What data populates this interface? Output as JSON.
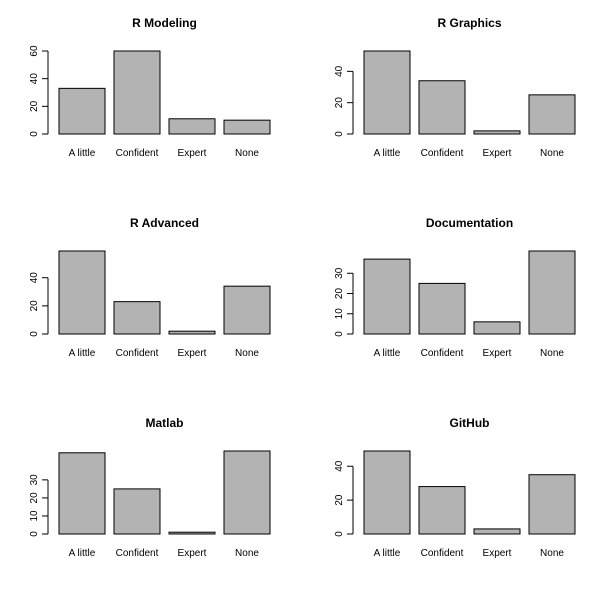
{
  "chart_data": [
    {
      "type": "bar",
      "title": "R Modeling",
      "categories": [
        "A little",
        "Confident",
        "Expert",
        "None"
      ],
      "values": [
        33,
        60,
        11,
        10
      ],
      "ylim": [
        0,
        60
      ],
      "yticks": [
        0,
        20,
        40,
        60
      ],
      "bar_color": "#b3b3b3",
      "xlabel": "",
      "ylabel": ""
    },
    {
      "type": "bar",
      "title": "R Graphics",
      "categories": [
        "A little",
        "Confident",
        "Expert",
        "None"
      ],
      "values": [
        53,
        34,
        2,
        25
      ],
      "ylim": [
        0,
        53
      ],
      "yticks": [
        0,
        20,
        40
      ],
      "bar_color": "#b3b3b3",
      "xlabel": "",
      "ylabel": ""
    },
    {
      "type": "bar",
      "title": "R Advanced",
      "categories": [
        "A little",
        "Confident",
        "Expert",
        "None"
      ],
      "values": [
        59,
        23,
        2,
        34
      ],
      "ylim": [
        0,
        59
      ],
      "yticks": [
        0,
        20,
        40
      ],
      "bar_color": "#b3b3b3",
      "xlabel": "",
      "ylabel": ""
    },
    {
      "type": "bar",
      "title": "Documentation",
      "categories": [
        "A little",
        "Confident",
        "Expert",
        "None"
      ],
      "values": [
        37,
        25,
        6,
        41
      ],
      "ylim": [
        0,
        41
      ],
      "yticks": [
        0,
        10,
        20,
        30
      ],
      "bar_color": "#b3b3b3",
      "xlabel": "",
      "ylabel": ""
    },
    {
      "type": "bar",
      "title": "Matlab",
      "categories": [
        "A little",
        "Confident",
        "Expert",
        "None"
      ],
      "values": [
        45,
        25,
        1,
        46
      ],
      "ylim": [
        0,
        46
      ],
      "yticks": [
        0,
        10,
        20,
        30
      ],
      "bar_color": "#b3b3b3",
      "xlabel": "",
      "ylabel": ""
    },
    {
      "type": "bar",
      "title": "GitHub",
      "categories": [
        "A little",
        "Confident",
        "Expert",
        "None"
      ],
      "values": [
        49,
        28,
        3,
        35
      ],
      "ylim": [
        0,
        49
      ],
      "yticks": [
        0,
        20,
        40
      ],
      "bar_color": "#b3b3b3",
      "xlabel": "",
      "ylabel": ""
    }
  ]
}
